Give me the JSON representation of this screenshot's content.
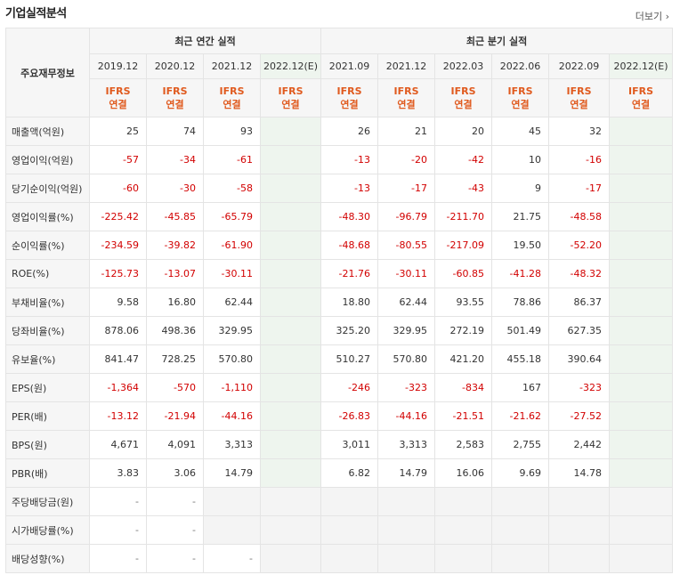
{
  "page": {
    "title": "기업실적분석",
    "more_label": "더보기"
  },
  "header": {
    "corner": "주요재무정보",
    "annual_group": "최근 연간 실적",
    "quarter_group": "최근 분기 실적",
    "annual_periods": [
      "2019.12",
      "2020.12",
      "2021.12",
      "2022.12(E)"
    ],
    "quarter_periods": [
      "2021.09",
      "2021.12",
      "2022.03",
      "2022.06",
      "2022.09",
      "2022.12(E)"
    ],
    "ifrs_line1": "IFRS",
    "ifrs_line2": "연결"
  },
  "rows": [
    {
      "label": "매출액(억원)",
      "annual": [
        "25",
        "74",
        "93",
        ""
      ],
      "quarter": [
        "26",
        "21",
        "20",
        "45",
        "32",
        ""
      ]
    },
    {
      "label": "영업이익(억원)",
      "annual": [
        "-57",
        "-34",
        "-61",
        ""
      ],
      "quarter": [
        "-13",
        "-20",
        "-42",
        "10",
        "-16",
        ""
      ]
    },
    {
      "label": "당기순이익(억원)",
      "annual": [
        "-60",
        "-30",
        "-58",
        ""
      ],
      "quarter": [
        "-13",
        "-17",
        "-43",
        "9",
        "-17",
        ""
      ]
    },
    {
      "label": "영업이익률(%)",
      "annual": [
        "-225.42",
        "-45.85",
        "-65.79",
        ""
      ],
      "quarter": [
        "-48.30",
        "-96.79",
        "-211.70",
        "21.75",
        "-48.58",
        ""
      ]
    },
    {
      "label": "순이익률(%)",
      "annual": [
        "-234.59",
        "-39.82",
        "-61.90",
        ""
      ],
      "quarter": [
        "-48.68",
        "-80.55",
        "-217.09",
        "19.50",
        "-52.20",
        ""
      ]
    },
    {
      "label": "ROE(%)",
      "annual": [
        "-125.73",
        "-13.07",
        "-30.11",
        ""
      ],
      "quarter": [
        "-21.76",
        "-30.11",
        "-60.85",
        "-41.28",
        "-48.32",
        ""
      ]
    },
    {
      "label": "부채비율(%)",
      "annual": [
        "9.58",
        "16.80",
        "62.44",
        ""
      ],
      "quarter": [
        "18.80",
        "62.44",
        "93.55",
        "78.86",
        "86.37",
        ""
      ]
    },
    {
      "label": "당좌비율(%)",
      "annual": [
        "878.06",
        "498.36",
        "329.95",
        ""
      ],
      "quarter": [
        "325.20",
        "329.95",
        "272.19",
        "501.49",
        "627.35",
        ""
      ]
    },
    {
      "label": "유보율(%)",
      "annual": [
        "841.47",
        "728.25",
        "570.80",
        ""
      ],
      "quarter": [
        "510.27",
        "570.80",
        "421.20",
        "455.18",
        "390.64",
        ""
      ]
    },
    {
      "label": "EPS(원)",
      "annual": [
        "-1,364",
        "-570",
        "-1,110",
        ""
      ],
      "quarter": [
        "-246",
        "-323",
        "-834",
        "167",
        "-323",
        ""
      ]
    },
    {
      "label": "PER(배)",
      "annual": [
        "-13.12",
        "-21.94",
        "-44.16",
        ""
      ],
      "quarter": [
        "-26.83",
        "-44.16",
        "-21.51",
        "-21.62",
        "-27.52",
        ""
      ]
    },
    {
      "label": "BPS(원)",
      "annual": [
        "4,671",
        "4,091",
        "3,313",
        ""
      ],
      "quarter": [
        "3,011",
        "3,313",
        "2,583",
        "2,755",
        "2,442",
        ""
      ]
    },
    {
      "label": "PBR(배)",
      "annual": [
        "3.83",
        "3.06",
        "14.79",
        ""
      ],
      "quarter": [
        "6.82",
        "14.79",
        "16.06",
        "9.69",
        "14.78",
        ""
      ]
    },
    {
      "label": "주당배당금(원)",
      "annual": [
        "-",
        "-",
        "",
        ""
      ],
      "quarter": [
        "",
        "",
        "",
        "",
        "",
        ""
      ]
    },
    {
      "label": "시가배당률(%)",
      "annual": [
        "-",
        "-",
        "",
        ""
      ],
      "quarter": [
        "",
        "",
        "",
        "",
        "",
        ""
      ]
    },
    {
      "label": "배당성향(%)",
      "annual": [
        "-",
        "-",
        "-",
        ""
      ],
      "quarter": [
        "",
        "",
        "",
        "",
        "",
        ""
      ]
    }
  ],
  "colors": {
    "negative": "#d20000",
    "ifrs": "#e05a1e",
    "estimate_bg": "#eef5ee"
  }
}
